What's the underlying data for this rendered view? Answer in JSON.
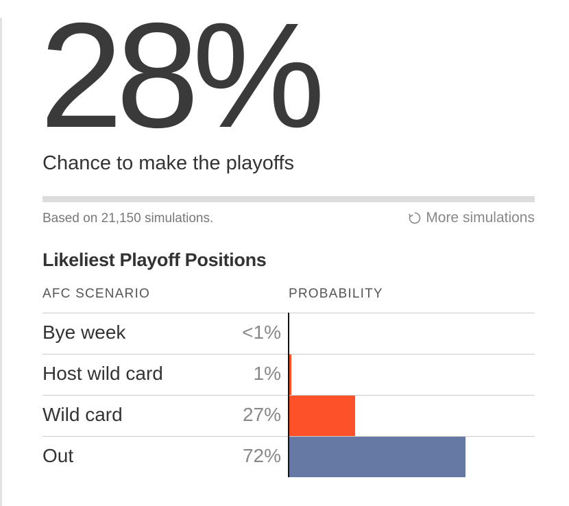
{
  "headline": {
    "percent": "28%",
    "subtitle": "Chance to make the playoffs"
  },
  "simulation": {
    "note": "Based on 21,150 simulations.",
    "more_label": "More simulations",
    "progress": 1.0
  },
  "colors": {
    "bar_orange": "#fd5229",
    "bar_blue": "#6579a4",
    "progress": "#dddddd"
  },
  "chart_data": {
    "type": "bar",
    "title": "Likeliest Playoff Positions",
    "columns": [
      "AFC SCENARIO",
      "PROBABILITY"
    ],
    "categories": [
      "Bye week",
      "Host wild card",
      "Wild card",
      "Out"
    ],
    "labels": [
      "<1%",
      "1%",
      "27%",
      "72%"
    ],
    "values": [
      0.3,
      1,
      27,
      72
    ],
    "bar_colors": [
      "#fd5229",
      "#fd5229",
      "#fd5229",
      "#6579a4"
    ],
    "xlim": [
      0,
      100
    ],
    "orientation": "horizontal",
    "grid": false
  }
}
